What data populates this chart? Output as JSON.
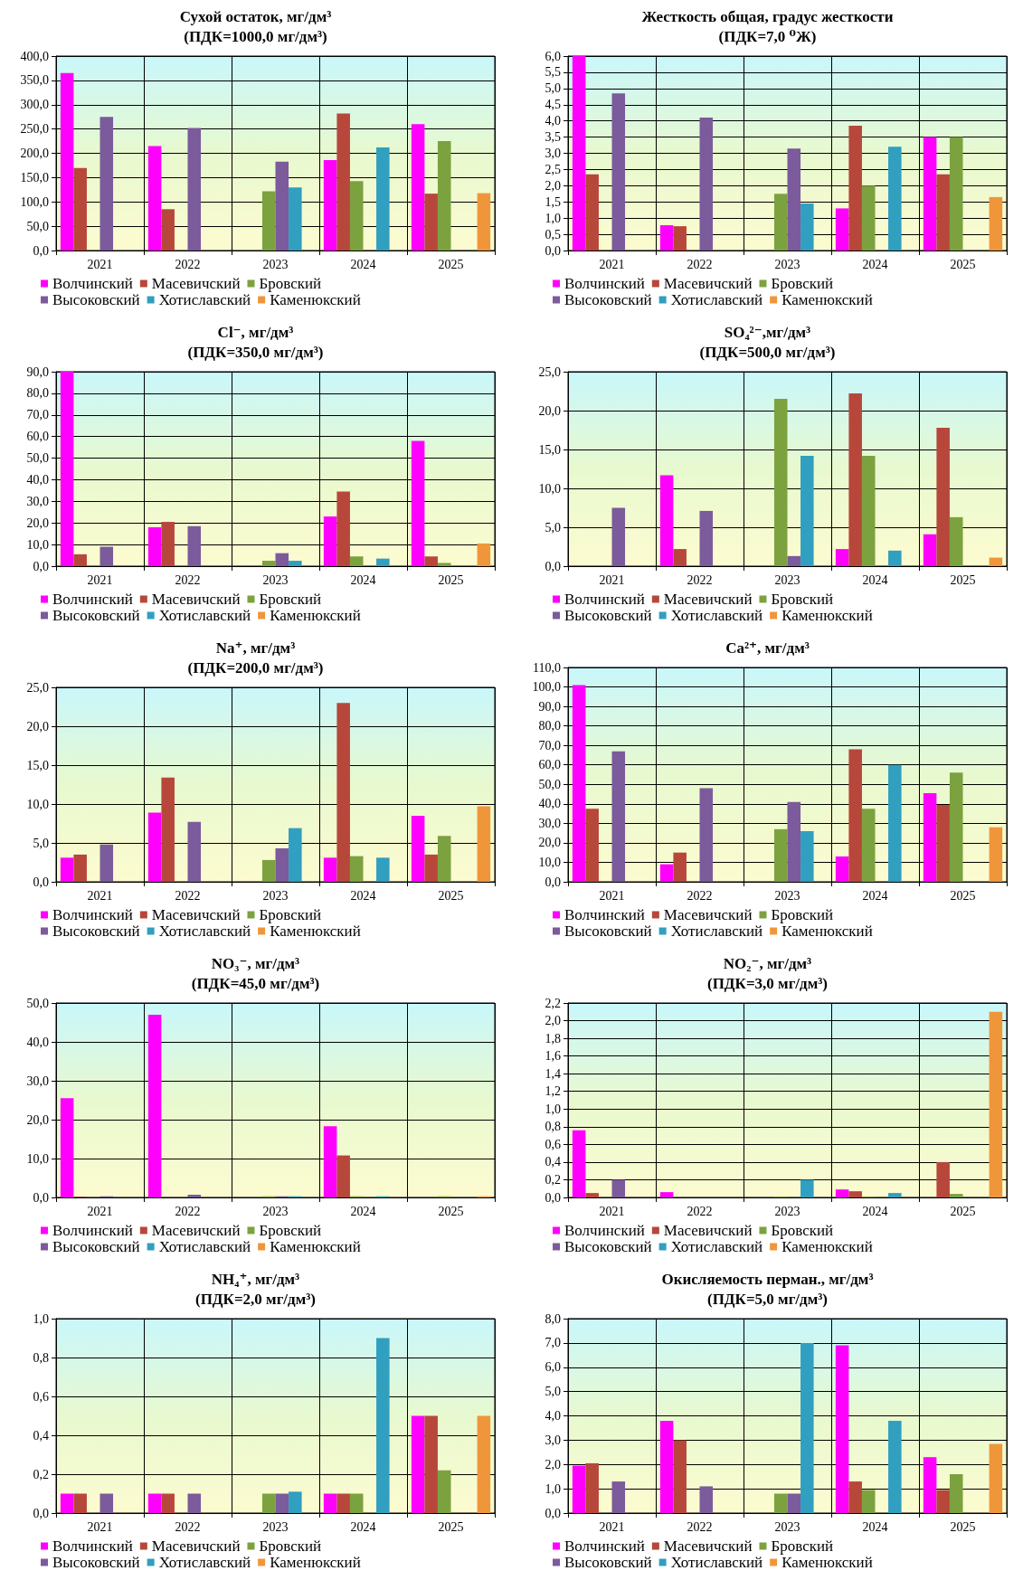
{
  "chart_data": [
    {
      "type": "bar",
      "title": "Сухой остаток, мг/дм³",
      "subtitle": "(ПДК=1000,0 мг/дм³)",
      "categories": [
        "2021",
        "2022",
        "2023",
        "2024",
        "2025"
      ],
      "ylim": [
        0,
        400
      ],
      "yticks": [
        {
          "value": 0,
          "label": "0,0"
        },
        {
          "value": 50,
          "label": "50,0"
        },
        {
          "value": 100,
          "label": "100,0"
        },
        {
          "value": 150,
          "label": "150,0"
        },
        {
          "value": 200,
          "label": "200,0"
        },
        {
          "value": 250,
          "label": "250,0"
        },
        {
          "value": 300,
          "label": "300,0"
        },
        {
          "value": 350,
          "label": "350,0"
        },
        {
          "value": 400,
          "label": "400,0"
        }
      ],
      "grid": true,
      "legend": "bottom",
      "series": [
        {
          "name": "Волчинский",
          "color": "#ff00ff",
          "values": [
            365,
            215,
            null,
            186,
            260
          ]
        },
        {
          "name": "Масевичский",
          "color": "#b7473b",
          "values": [
            170,
            85,
            null,
            282,
            117
          ]
        },
        {
          "name": "Бровский",
          "color": "#7ba23f",
          "values": [
            null,
            null,
            122,
            143,
            225
          ]
        },
        {
          "name": "Высоковский",
          "color": "#7b5b9b",
          "values": [
            275,
            252,
            183,
            null,
            null
          ]
        },
        {
          "name": "Хотиславский",
          "color": "#319fbf",
          "values": [
            null,
            null,
            130,
            212,
            null
          ]
        },
        {
          "name": "Каменюкский",
          "color": "#f0963a",
          "values": [
            null,
            null,
            null,
            null,
            118
          ]
        }
      ]
    },
    {
      "type": "bar",
      "title": "Жесткость общая, градус жесткости",
      "subtitle": "(ПДК=7,0 ⁰Ж)",
      "categories": [
        "2021",
        "2022",
        "2023",
        "2024",
        "2025"
      ],
      "ylim": [
        0,
        6
      ],
      "yticks": [
        {
          "value": 0,
          "label": "0,0"
        },
        {
          "value": 0.5,
          "label": "0,5"
        },
        {
          "value": 1,
          "label": "1,0"
        },
        {
          "value": 1.5,
          "label": "1,5"
        },
        {
          "value": 2,
          "label": "2,0"
        },
        {
          "value": 2.5,
          "label": "2,5"
        },
        {
          "value": 3,
          "label": "3,0"
        },
        {
          "value": 3.5,
          "label": "3,5"
        },
        {
          "value": 4,
          "label": "4,0"
        },
        {
          "value": 4.5,
          "label": "4,5"
        },
        {
          "value": 5,
          "label": "5,0"
        },
        {
          "value": 5.5,
          "label": "5,5"
        },
        {
          "value": 6,
          "label": "6,0"
        }
      ],
      "grid": true,
      "legend": "bottom",
      "series": [
        {
          "name": "Волчинский",
          "color": "#ff00ff",
          "values": [
            6.0,
            0.78,
            null,
            1.3,
            3.5
          ]
        },
        {
          "name": "Масевичский",
          "color": "#b7473b",
          "values": [
            2.35,
            0.75,
            null,
            3.85,
            2.35
          ]
        },
        {
          "name": "Бровский",
          "color": "#7ba23f",
          "values": [
            null,
            null,
            1.75,
            2.0,
            3.5
          ]
        },
        {
          "name": "Высоковский",
          "color": "#7b5b9b",
          "values": [
            4.85,
            4.1,
            3.15,
            null,
            null
          ]
        },
        {
          "name": "Хотиславский",
          "color": "#319fbf",
          "values": [
            null,
            null,
            1.45,
            3.2,
            null
          ]
        },
        {
          "name": "Каменюкский",
          "color": "#f0963a",
          "values": [
            null,
            null,
            null,
            null,
            1.65
          ]
        }
      ]
    },
    {
      "type": "bar",
      "title": "Cl⁻, мг/дм³",
      "subtitle": "(ПДК=350,0 мг/дм³)",
      "categories": [
        "2021",
        "2022",
        "2023",
        "2024",
        "2025"
      ],
      "ylim": [
        0,
        90
      ],
      "yticks": [
        {
          "value": 0,
          "label": "0,0"
        },
        {
          "value": 10,
          "label": "10,0"
        },
        {
          "value": 20,
          "label": "20,0"
        },
        {
          "value": 30,
          "label": "30,0"
        },
        {
          "value": 40,
          "label": "40,0"
        },
        {
          "value": 50,
          "label": "50,0"
        },
        {
          "value": 60,
          "label": "60,0"
        },
        {
          "value": 70,
          "label": "70,0"
        },
        {
          "value": 80,
          "label": "80,0"
        },
        {
          "value": 90,
          "label": "90,0"
        }
      ],
      "grid": true,
      "legend": "bottom",
      "series": [
        {
          "name": "Волчинский",
          "color": "#ff00ff",
          "values": [
            90,
            18,
            null,
            23,
            58
          ]
        },
        {
          "name": "Масевичский",
          "color": "#b7473b",
          "values": [
            5.5,
            20.5,
            null,
            34.5,
            4.5
          ]
        },
        {
          "name": "Бровский",
          "color": "#7ba23f",
          "values": [
            null,
            null,
            2.5,
            4.5,
            1.5
          ]
        },
        {
          "name": "Высоковский",
          "color": "#7b5b9b",
          "values": [
            9,
            18.5,
            6,
            null,
            null
          ]
        },
        {
          "name": "Хотиславский",
          "color": "#319fbf",
          "values": [
            null,
            null,
            2.5,
            3.5,
            null
          ]
        },
        {
          "name": "Каменюкский",
          "color": "#f0963a",
          "values": [
            null,
            null,
            null,
            null,
            10.5
          ]
        }
      ]
    },
    {
      "type": "bar",
      "title": "SO₄²⁻,мг/дм³",
      "subtitle": "(ПДК=500,0 мг/дм³)",
      "categories": [
        "2021",
        "2022",
        "2023",
        "2024",
        "2025"
      ],
      "ylim": [
        0,
        25
      ],
      "yticks": [
        {
          "value": 0,
          "label": "0,0"
        },
        {
          "value": 5,
          "label": "5,0"
        },
        {
          "value": 10,
          "label": "10,0"
        },
        {
          "value": 15,
          "label": "15,0"
        },
        {
          "value": 20,
          "label": "20,0"
        },
        {
          "value": 25,
          "label": "25,0"
        }
      ],
      "grid": true,
      "legend": "bottom",
      "series": [
        {
          "name": "Волчинский",
          "color": "#ff00ff",
          "values": [
            null,
            11.7,
            null,
            2.2,
            4.1
          ]
        },
        {
          "name": "Масевичский",
          "color": "#b7473b",
          "values": [
            null,
            2.2,
            null,
            22.2,
            17.8
          ]
        },
        {
          "name": "Бровский",
          "color": "#7ba23f",
          "values": [
            null,
            null,
            21.5,
            14.2,
            6.3
          ]
        },
        {
          "name": "Высоковский",
          "color": "#7b5b9b",
          "values": [
            7.5,
            7.1,
            1.3,
            null,
            null
          ]
        },
        {
          "name": "Хотиславский",
          "color": "#319fbf",
          "values": [
            null,
            null,
            14.2,
            2.0,
            null
          ]
        },
        {
          "name": "Каменюкский",
          "color": "#f0963a",
          "values": [
            null,
            null,
            null,
            null,
            1.1
          ]
        }
      ]
    },
    {
      "type": "bar",
      "title": "Na⁺, мг/дм³",
      "subtitle": "(ПДК=200,0 мг/дм³)",
      "categories": [
        "2021",
        "2022",
        "2023",
        "2024",
        "2025"
      ],
      "ylim": [
        0,
        25
      ],
      "yticks": [
        {
          "value": 0,
          "label": "0,0"
        },
        {
          "value": 5,
          "label": "5,0"
        },
        {
          "value": 10,
          "label": "10,0"
        },
        {
          "value": 15,
          "label": "15,0"
        },
        {
          "value": 20,
          "label": "20,0"
        },
        {
          "value": 25,
          "label": "25,0"
        }
      ],
      "grid": true,
      "legend": "bottom",
      "series": [
        {
          "name": "Волчинский",
          "color": "#ff00ff",
          "values": [
            3.1,
            8.9,
            null,
            3.1,
            8.5
          ]
        },
        {
          "name": "Масевичский",
          "color": "#b7473b",
          "values": [
            3.5,
            13.4,
            null,
            23.0,
            3.5
          ]
        },
        {
          "name": "Бровский",
          "color": "#7ba23f",
          "values": [
            null,
            null,
            2.8,
            3.3,
            5.9
          ]
        },
        {
          "name": "Высоковский",
          "color": "#7b5b9b",
          "values": [
            4.8,
            7.7,
            4.3,
            null,
            null
          ]
        },
        {
          "name": "Хотиславский",
          "color": "#319fbf",
          "values": [
            null,
            null,
            6.9,
            3.1,
            null
          ]
        },
        {
          "name": "Каменюкский",
          "color": "#f0963a",
          "values": [
            null,
            null,
            null,
            null,
            9.7
          ]
        }
      ]
    },
    {
      "type": "bar",
      "title": "Ca²⁺, мг/дм³",
      "categories": [
        "2021",
        "2022",
        "2023",
        "2024",
        "2025"
      ],
      "ylim": [
        0,
        110
      ],
      "yticks": [
        {
          "value": 0,
          "label": "0,0"
        },
        {
          "value": 10,
          "label": "10,0"
        },
        {
          "value": 20,
          "label": "20,0"
        },
        {
          "value": 30,
          "label": "30,0"
        },
        {
          "value": 40,
          "label": "40,0"
        },
        {
          "value": 50,
          "label": "50,0"
        },
        {
          "value": 60,
          "label": "60,0"
        },
        {
          "value": 70,
          "label": "70,0"
        },
        {
          "value": 80,
          "label": "80,0"
        },
        {
          "value": 90,
          "label": "90,0"
        },
        {
          "value": 100,
          "label": "100,0"
        },
        {
          "value": 110,
          "label": "110,0"
        }
      ],
      "grid": true,
      "legend": "bottom",
      "series": [
        {
          "name": "Волчинский",
          "color": "#ff00ff",
          "values": [
            101,
            9,
            null,
            13,
            45.5
          ]
        },
        {
          "name": "Масевичский",
          "color": "#b7473b",
          "values": [
            37.5,
            15,
            null,
            68,
            39.5
          ]
        },
        {
          "name": "Бровский",
          "color": "#7ba23f",
          "values": [
            null,
            null,
            27,
            37.5,
            56
          ]
        },
        {
          "name": "Высоковский",
          "color": "#7b5b9b",
          "values": [
            67,
            48,
            41,
            null,
            null
          ]
        },
        {
          "name": "Хотиславский",
          "color": "#319fbf",
          "values": [
            null,
            null,
            26,
            60,
            null
          ]
        },
        {
          "name": "Каменюкский",
          "color": "#f0963a",
          "values": [
            null,
            null,
            null,
            null,
            28
          ]
        }
      ]
    },
    {
      "type": "bar",
      "title": "NO₃⁻, мг/дм³",
      "subtitle": "(ПДК=45,0 мг/дм³)",
      "categories": [
        "2021",
        "2022",
        "2023",
        "2024",
        "2025"
      ],
      "ylim": [
        0,
        50
      ],
      "yticks": [
        {
          "value": 0,
          "label": "0,0"
        },
        {
          "value": 10,
          "label": "10,0"
        },
        {
          "value": 20,
          "label": "20,0"
        },
        {
          "value": 30,
          "label": "30,0"
        },
        {
          "value": 40,
          "label": "40,0"
        },
        {
          "value": 50,
          "label": "50,0"
        }
      ],
      "grid": true,
      "legend": "bottom",
      "series": [
        {
          "name": "Волчинский",
          "color": "#ff00ff",
          "values": [
            25.5,
            47,
            null,
            18.3,
            null
          ]
        },
        {
          "name": "Масевичский",
          "color": "#b7473b",
          "values": [
            0.2,
            null,
            null,
            10.8,
            null
          ]
        },
        {
          "name": "Бровский",
          "color": "#7ba23f",
          "values": [
            null,
            null,
            0.3,
            0.3,
            0.3
          ]
        },
        {
          "name": "Высоковский",
          "color": "#7b5b9b",
          "values": [
            0.3,
            0.7,
            0.3,
            null,
            null
          ]
        },
        {
          "name": "Хотиславский",
          "color": "#319fbf",
          "values": [
            null,
            null,
            0.3,
            0.3,
            null
          ]
        },
        {
          "name": "Каменюкский",
          "color": "#f0963a",
          "values": [
            null,
            null,
            null,
            null,
            0.3
          ]
        }
      ]
    },
    {
      "type": "bar",
      "title": "NO₂⁻, мг/дм³",
      "subtitle": "(ПДК=3,0 мг/дм³)",
      "categories": [
        "2021",
        "2022",
        "2023",
        "2024",
        "2025"
      ],
      "ylim": [
        0,
        2.2
      ],
      "yticks": [
        {
          "value": 0,
          "label": "0,0"
        },
        {
          "value": 0.2,
          "label": "0,2"
        },
        {
          "value": 0.4,
          "label": "0,4"
        },
        {
          "value": 0.6,
          "label": "0,6"
        },
        {
          "value": 0.8,
          "label": "0,8"
        },
        {
          "value": 1,
          "label": "1,0"
        },
        {
          "value": 1.2,
          "label": "1,2"
        },
        {
          "value": 1.4,
          "label": "1,4"
        },
        {
          "value": 1.6,
          "label": "1,6"
        },
        {
          "value": 1.8,
          "label": "1,8"
        },
        {
          "value": 2,
          "label": "2,0"
        },
        {
          "value": 2.2,
          "label": "2,2"
        }
      ],
      "grid": true,
      "legend": "bottom",
      "series": [
        {
          "name": "Волчинский",
          "color": "#ff00ff",
          "values": [
            0.76,
            0.06,
            null,
            0.09,
            null
          ]
        },
        {
          "name": "Масевичский",
          "color": "#b7473b",
          "values": [
            0.05,
            null,
            null,
            0.07,
            0.4
          ]
        },
        {
          "name": "Бровский",
          "color": "#7ba23f",
          "values": [
            null,
            null,
            0.01,
            0.01,
            0.04
          ]
        },
        {
          "name": "Высоковский",
          "color": "#7b5b9b",
          "values": [
            0.2,
            null,
            null,
            null,
            null
          ]
        },
        {
          "name": "Хотиславский",
          "color": "#319fbf",
          "values": [
            null,
            null,
            0.2,
            0.05,
            null
          ]
        },
        {
          "name": "Каменюкский",
          "color": "#f0963a",
          "values": [
            null,
            null,
            null,
            null,
            2.1
          ]
        }
      ]
    },
    {
      "type": "bar",
      "title": "NH₄⁺, мг/дм³",
      "subtitle": "(ПДК=2,0 мг/дм³)",
      "categories": [
        "2021",
        "2022",
        "2023",
        "2024",
        "2025"
      ],
      "ylim": [
        0,
        1
      ],
      "yticks": [
        {
          "value": 0,
          "label": "0,0"
        },
        {
          "value": 0.2,
          "label": "0,2"
        },
        {
          "value": 0.4,
          "label": "0,4"
        },
        {
          "value": 0.6,
          "label": "0,6"
        },
        {
          "value": 0.8,
          "label": "0,8"
        },
        {
          "value": 1,
          "label": "1,0"
        }
      ],
      "grid": true,
      "legend": "bottom",
      "series": [
        {
          "name": "Волчинский",
          "color": "#ff00ff",
          "values": [
            0.1,
            0.1,
            null,
            0.1,
            0.5
          ]
        },
        {
          "name": "Масевичский",
          "color": "#b7473b",
          "values": [
            0.1,
            0.1,
            null,
            0.1,
            0.5
          ]
        },
        {
          "name": "Бровский",
          "color": "#7ba23f",
          "values": [
            null,
            null,
            0.1,
            0.1,
            0.22
          ]
        },
        {
          "name": "Высоковский",
          "color": "#7b5b9b",
          "values": [
            0.1,
            0.1,
            0.1,
            null,
            null
          ]
        },
        {
          "name": "Хотиславский",
          "color": "#319fbf",
          "values": [
            null,
            null,
            0.11,
            0.9,
            null
          ]
        },
        {
          "name": "Каменюкский",
          "color": "#f0963a",
          "values": [
            null,
            null,
            null,
            null,
            0.5
          ]
        }
      ]
    },
    {
      "type": "bar",
      "title": "Окисляемость перман., мг/дм³",
      "subtitle": "(ПДК=5,0 мг/дм³)",
      "categories": [
        "2021",
        "2022",
        "2023",
        "2024",
        "2025"
      ],
      "ylim": [
        0,
        8
      ],
      "yticks": [
        {
          "value": 0,
          "label": "0,0"
        },
        {
          "value": 1,
          "label": "1,0"
        },
        {
          "value": 2,
          "label": "2,0"
        },
        {
          "value": 3,
          "label": "3,0"
        },
        {
          "value": 4,
          "label": "4,0"
        },
        {
          "value": 5,
          "label": "5,0"
        },
        {
          "value": 6,
          "label": "6,0"
        },
        {
          "value": 7,
          "label": "7,0"
        },
        {
          "value": 8,
          "label": "8,0"
        }
      ],
      "grid": true,
      "legend": "bottom",
      "series": [
        {
          "name": "Волчинский",
          "color": "#ff00ff",
          "values": [
            1.95,
            3.8,
            null,
            6.9,
            2.3
          ]
        },
        {
          "name": "Масевичский",
          "color": "#b7473b",
          "values": [
            2.05,
            3.0,
            null,
            1.3,
            0.95
          ]
        },
        {
          "name": "Бровский",
          "color": "#7ba23f",
          "values": [
            null,
            null,
            0.8,
            0.95,
            1.6
          ]
        },
        {
          "name": "Высоковский",
          "color": "#7b5b9b",
          "values": [
            1.3,
            1.1,
            0.8,
            null,
            null
          ]
        },
        {
          "name": "Хотиславский",
          "color": "#319fbf",
          "values": [
            null,
            null,
            7.0,
            3.8,
            null
          ]
        },
        {
          "name": "Каменюкский",
          "color": "#f0963a",
          "values": [
            null,
            null,
            null,
            null,
            2.85
          ]
        }
      ]
    }
  ]
}
